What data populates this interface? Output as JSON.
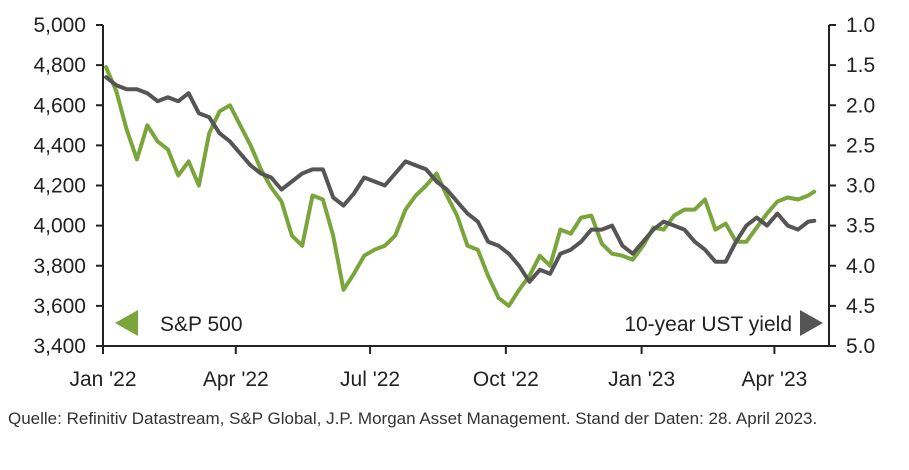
{
  "chart_data": {
    "type": "line",
    "x": [
      "2022-01-03",
      "2022-01-10",
      "2022-01-17",
      "2022-01-24",
      "2022-01-31",
      "2022-02-07",
      "2022-02-14",
      "2022-02-21",
      "2022-02-28",
      "2022-03-07",
      "2022-03-14",
      "2022-03-21",
      "2022-03-28",
      "2022-04-04",
      "2022-04-11",
      "2022-04-18",
      "2022-04-25",
      "2022-05-02",
      "2022-05-09",
      "2022-05-16",
      "2022-05-23",
      "2022-05-30",
      "2022-06-06",
      "2022-06-13",
      "2022-06-20",
      "2022-06-27",
      "2022-07-04",
      "2022-07-11",
      "2022-07-18",
      "2022-07-25",
      "2022-08-01",
      "2022-08-08",
      "2022-08-15",
      "2022-08-22",
      "2022-08-29",
      "2022-09-05",
      "2022-09-12",
      "2022-09-19",
      "2022-09-26",
      "2022-10-03",
      "2022-10-10",
      "2022-10-17",
      "2022-10-24",
      "2022-10-31",
      "2022-11-07",
      "2022-11-14",
      "2022-11-21",
      "2022-11-28",
      "2022-12-05",
      "2022-12-12",
      "2022-12-19",
      "2022-12-26",
      "2023-01-02",
      "2023-01-09",
      "2023-01-16",
      "2023-01-23",
      "2023-01-30",
      "2023-02-06",
      "2023-02-13",
      "2023-02-20",
      "2023-02-27",
      "2023-03-06",
      "2023-03-13",
      "2023-03-20",
      "2023-03-27",
      "2023-04-03",
      "2023-04-10",
      "2023-04-17",
      "2023-04-24",
      "2023-04-28"
    ],
    "series": [
      {
        "name": "S&P 500",
        "axis": "left",
        "color": "#7aa53a",
        "values": [
          4790,
          4670,
          4480,
          4330,
          4500,
          4420,
          4380,
          4250,
          4320,
          4200,
          4460,
          4570,
          4600,
          4500,
          4400,
          4280,
          4190,
          4120,
          3950,
          3900,
          4150,
          4130,
          3950,
          3680,
          3760,
          3850,
          3880,
          3900,
          3950,
          4080,
          4150,
          4200,
          4260,
          4150,
          4050,
          3900,
          3880,
          3750,
          3640,
          3600,
          3680,
          3750,
          3850,
          3800,
          3980,
          3960,
          4040,
          4050,
          3910,
          3860,
          3850,
          3830,
          3900,
          3990,
          3980,
          4050,
          4080,
          4080,
          4130,
          3980,
          4010,
          3920,
          3920,
          3990,
          4060,
          4120,
          4140,
          4130,
          4150,
          4169
        ]
      },
      {
        "name": "10-year UST yield",
        "axis": "right",
        "color": "#555555",
        "values": [
          1.65,
          1.75,
          1.8,
          1.8,
          1.85,
          1.95,
          1.9,
          1.95,
          1.85,
          2.1,
          2.15,
          2.35,
          2.45,
          2.6,
          2.75,
          2.85,
          2.9,
          3.05,
          2.95,
          2.85,
          2.8,
          2.8,
          3.15,
          3.25,
          3.1,
          2.9,
          2.95,
          3.0,
          2.85,
          2.7,
          2.75,
          2.8,
          2.95,
          3.05,
          3.2,
          3.35,
          3.45,
          3.7,
          3.75,
          3.85,
          4.0,
          4.2,
          4.05,
          4.1,
          3.85,
          3.8,
          3.7,
          3.55,
          3.55,
          3.5,
          3.75,
          3.85,
          3.7,
          3.55,
          3.45,
          3.5,
          3.55,
          3.7,
          3.8,
          3.95,
          3.95,
          3.7,
          3.5,
          3.4,
          3.5,
          3.35,
          3.5,
          3.55,
          3.45,
          3.44
        ]
      }
    ],
    "x_ticks": [
      "Jan '22",
      "Apr '22",
      "Jul '22",
      "Oct '22",
      "Jan '23",
      "Apr '23"
    ],
    "x_tick_dates": [
      "2022-01-01",
      "2022-04-01",
      "2022-07-01",
      "2022-10-01",
      "2023-01-01",
      "2023-04-01"
    ],
    "y_left": {
      "ticks": [
        "3,400",
        "3,600",
        "3,800",
        "4,000",
        "4,200",
        "4,400",
        "4,600",
        "4,800",
        "5,000"
      ],
      "min": 3400,
      "max": 5000
    },
    "y_right": {
      "ticks": [
        "1.0",
        "1.5",
        "2.0",
        "2.5",
        "3.0",
        "3.5",
        "4.0",
        "4.5",
        "5.0"
      ],
      "min": 1.0,
      "max": 5.0,
      "inverted": true
    },
    "legend": {
      "left_label": "S&P 500",
      "right_label": "10-year UST yield",
      "placement": "bottom"
    },
    "grid": false
  },
  "source_note": "Quelle: Refinitiv Datastream, S&P Global, J.P. Morgan Asset Management. Stand der Daten: 28. April 2023."
}
